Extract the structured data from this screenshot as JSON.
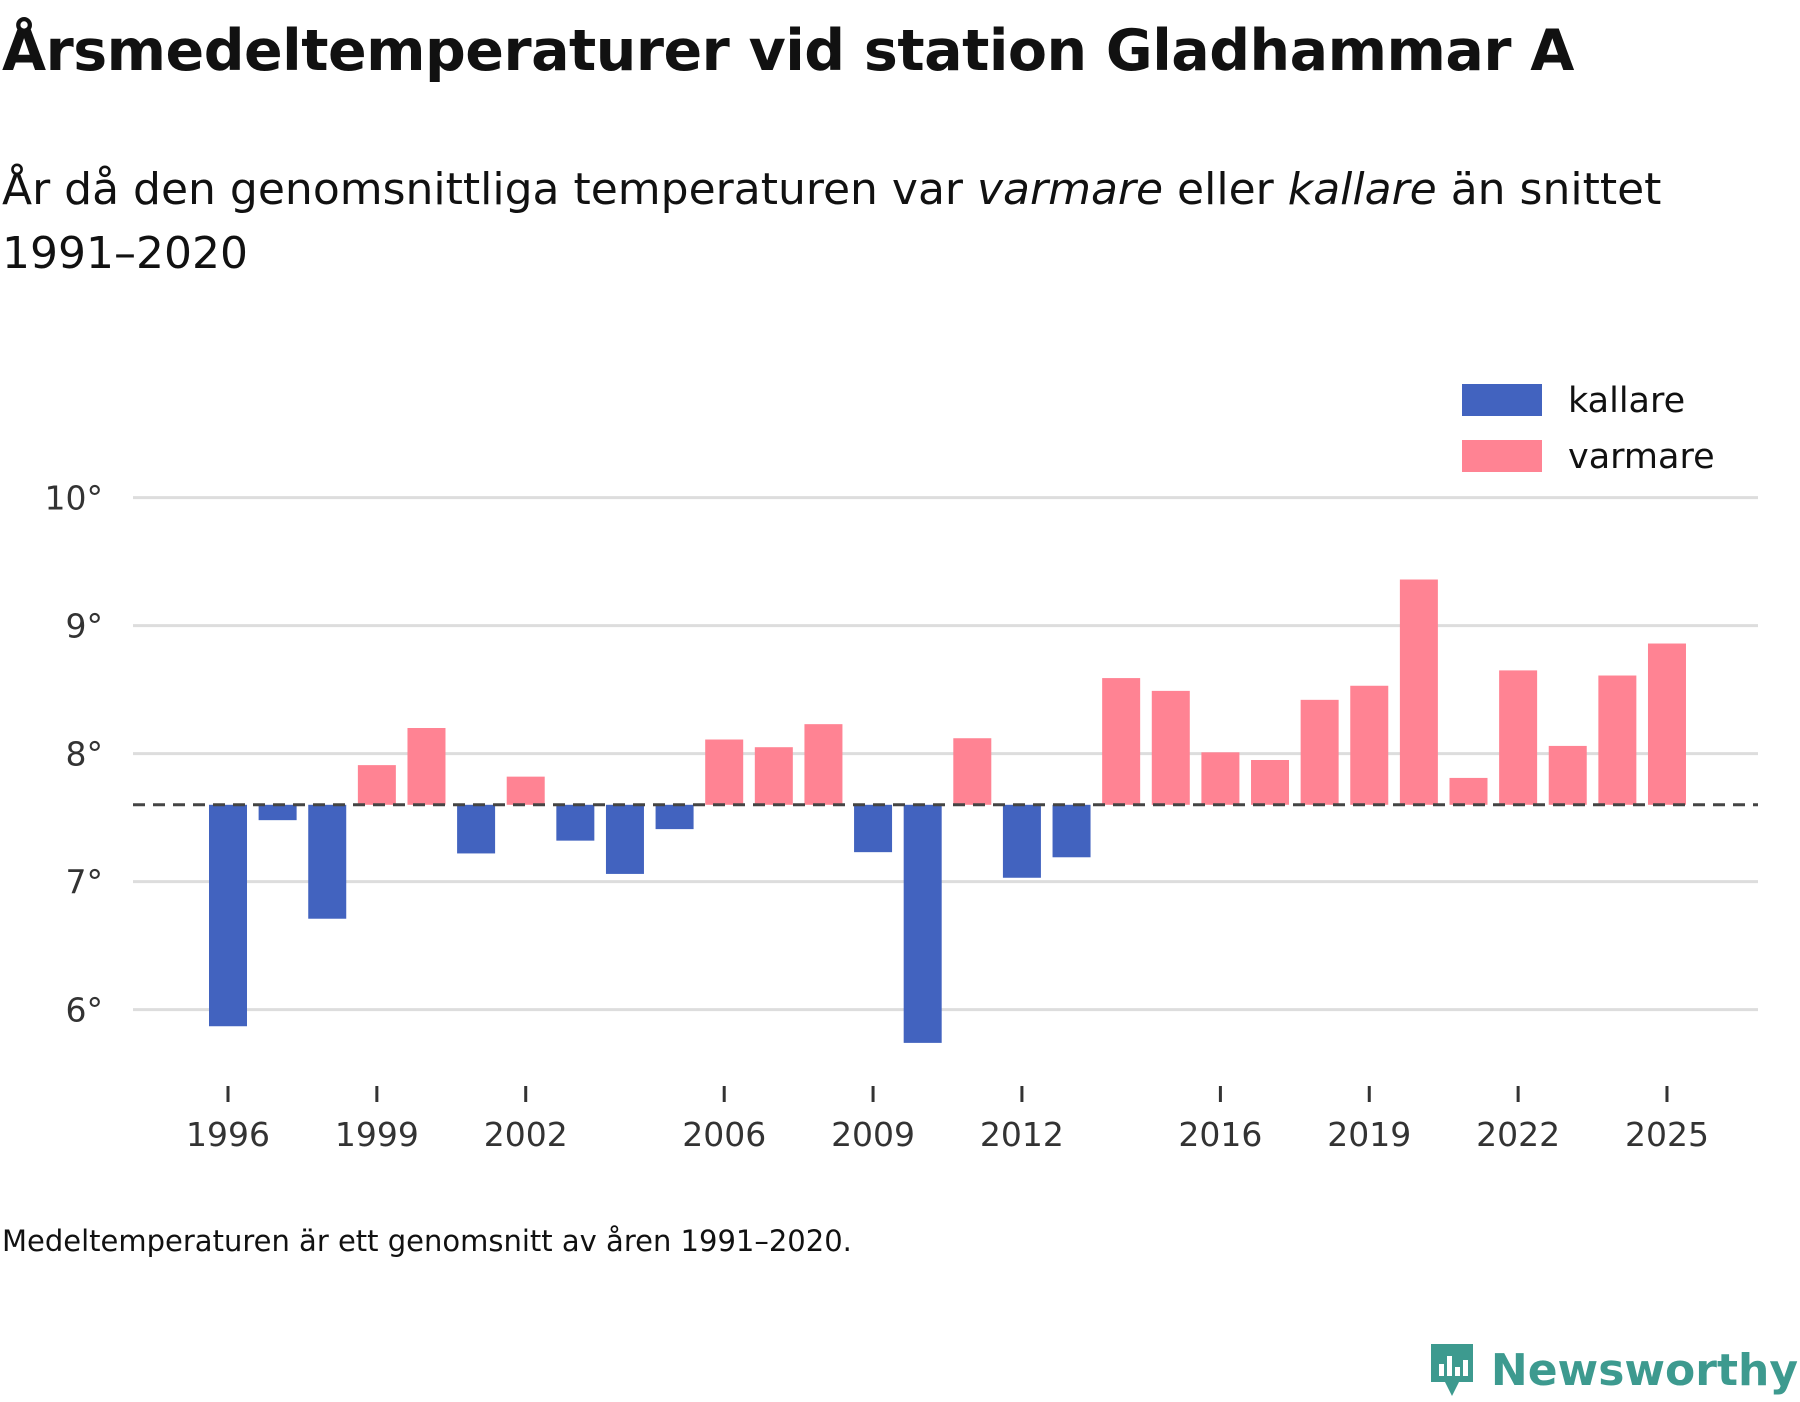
{
  "header": {
    "title": "Årsmedeltemperaturer vid station Gladhammar A",
    "subtitle_part1": "År då den genomsnittliga temperaturen var ",
    "subtitle_warm": "varmare",
    "subtitle_part2": " eller ",
    "subtitle_cold": "kallare",
    "subtitle_part3": " än snittet 1991–2020"
  },
  "footnote": "Medeltemperaturen är ett genomsnitt av åren 1991–2020.",
  "brand": {
    "name": "Newsworthy",
    "icon": "newsworthy-logo-icon",
    "color": "#3d9a8f"
  },
  "colors": {
    "kallare": "#4263bf",
    "varmare": "#ff8393",
    "grid": "#dddddd",
    "baseline": "#444444"
  },
  "chart_data": {
    "type": "bar",
    "title": "Årsmedeltemperaturer vid station Gladhammar A",
    "xlabel": "",
    "ylabel": "",
    "baseline": 7.6,
    "ylim": [
      5.45,
      10.45
    ],
    "yticks": [
      6,
      7,
      8,
      9,
      10
    ],
    "ytick_suffix": "°",
    "xticks": [
      1996,
      1999,
      2002,
      2006,
      2009,
      2012,
      2016,
      2019,
      2022,
      2025
    ],
    "x_start": 1996,
    "x_end": 2025,
    "grid": true,
    "legend": {
      "position": "top-right",
      "entries": [
        {
          "key": "kallare",
          "label": "kallare"
        },
        {
          "key": "varmare",
          "label": "varmare"
        }
      ]
    },
    "categories": [
      1996,
      1997,
      1998,
      1999,
      2000,
      2001,
      2002,
      2003,
      2004,
      2005,
      2006,
      2007,
      2008,
      2009,
      2010,
      2011,
      2012,
      2013,
      2014,
      2015,
      2016,
      2017,
      2018,
      2019,
      2020,
      2021,
      2022,
      2023,
      2024,
      2025
    ],
    "values": [
      5.87,
      7.48,
      6.71,
      7.91,
      8.2,
      7.22,
      7.82,
      7.32,
      7.06,
      7.41,
      8.11,
      8.05,
      8.23,
      7.23,
      5.74,
      8.12,
      7.03,
      7.19,
      8.59,
      8.49,
      8.01,
      7.95,
      8.42,
      8.53,
      9.36,
      7.81,
      8.65,
      8.06,
      8.61,
      8.86
    ]
  }
}
